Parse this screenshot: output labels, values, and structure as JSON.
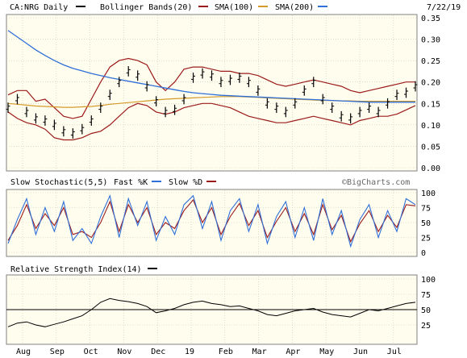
{
  "colors": {
    "background": "#fffdee",
    "price": "#000000",
    "bollinger": "#9b1a1a",
    "sma100": "#9b1a1a",
    "sma200": "#d39a2a",
    "sma200_line": "#2f6fd8",
    "stoch_fast": "#2f6fd8",
    "stoch_slow": "#9b1a1a",
    "rsi": "#000000"
  },
  "header": {
    "ticker": "CA:NRG Daily",
    "bollinger_label": "Bollinger Bands(20)",
    "sma100_label": "SMA(100)",
    "sma200_label": "SMA(200)",
    "date": "7/22/19"
  },
  "stoch_header": {
    "title": "Slow Stochastic(5,5)",
    "fast_label": "Fast %K",
    "slow_label": "Slow %D",
    "watermark": "©BigCharts.com"
  },
  "rsi_header": {
    "title": "Relative Strength Index(14)"
  },
  "chart_data": [
    {
      "type": "line",
      "panel": "price",
      "title": "CA:NRG Daily",
      "x_tick_labels": [
        "Aug",
        "Sep",
        "Oct",
        "Nov",
        "Dec",
        "19",
        "Feb",
        "Mar",
        "Apr",
        "May",
        "Jun",
        "Jul"
      ],
      "y_tick_labels": [
        "0.35",
        "0.30",
        "0.25",
        "0.20",
        "0.15",
        "0.10",
        "0.05",
        "0.00"
      ],
      "ylim": [
        0,
        0.35
      ],
      "grid": true,
      "series": [
        {
          "name": "Bollinger Bands(20)",
          "kind": "band_upper",
          "values": [
            0.17,
            0.18,
            0.18,
            0.155,
            0.16,
            0.14,
            0.12,
            0.115,
            0.12,
            0.16,
            0.2,
            0.235,
            0.25,
            0.255,
            0.25,
            0.24,
            0.2,
            0.18,
            0.2,
            0.23,
            0.235,
            0.235,
            0.23,
            0.225,
            0.225,
            0.22,
            0.22,
            0.215,
            0.205,
            0.195,
            0.19,
            0.195,
            0.2,
            0.205,
            0.2,
            0.195,
            0.19,
            0.18,
            0.175,
            0.18,
            0.185,
            0.19,
            0.195,
            0.2,
            0.2
          ]
        },
        {
          "name": "Bollinger Bands(20)",
          "kind": "band_lower",
          "values": [
            0.13,
            0.115,
            0.105,
            0.1,
            0.09,
            0.07,
            0.065,
            0.065,
            0.07,
            0.08,
            0.085,
            0.1,
            0.12,
            0.14,
            0.15,
            0.145,
            0.13,
            0.125,
            0.13,
            0.14,
            0.145,
            0.15,
            0.15,
            0.145,
            0.14,
            0.13,
            0.12,
            0.115,
            0.11,
            0.105,
            0.105,
            0.11,
            0.115,
            0.12,
            0.115,
            0.11,
            0.105,
            0.1,
            0.11,
            0.115,
            0.12,
            0.12,
            0.125,
            0.135,
            0.145
          ]
        },
        {
          "name": "SMA(100)",
          "values": [
            0.15,
            0.148,
            0.146,
            0.144,
            0.143,
            0.142,
            0.141,
            0.141,
            0.142,
            0.143,
            0.145,
            0.148,
            0.15,
            0.152,
            0.154,
            0.156,
            0.158,
            0.16,
            0.161,
            0.162,
            0.163,
            0.164,
            0.165,
            0.166,
            0.166,
            0.166,
            0.165,
            0.164,
            0.163,
            0.162,
            0.161,
            0.16,
            0.159,
            0.158,
            0.157,
            0.157,
            0.156,
            0.156,
            0.155,
            0.155,
            0.155,
            0.155,
            0.155,
            0.155,
            0.155
          ]
        },
        {
          "name": "SMA(200)",
          "values": [
            0.32,
            0.305,
            0.29,
            0.275,
            0.262,
            0.25,
            0.24,
            0.232,
            0.226,
            0.22,
            0.215,
            0.21,
            0.206,
            0.202,
            0.198,
            0.194,
            0.19,
            0.186,
            0.182,
            0.178,
            0.175,
            0.173,
            0.171,
            0.169,
            0.168,
            0.167,
            0.166,
            0.165,
            0.164,
            0.163,
            0.162,
            0.161,
            0.16,
            0.159,
            0.158,
            0.157,
            0.156,
            0.155,
            0.154,
            0.153,
            0.153,
            0.153,
            0.153,
            0.153,
            0.153
          ]
        },
        {
          "name": "Price",
          "values": [
            0.14,
            0.16,
            0.13,
            0.115,
            0.11,
            0.1,
            0.085,
            0.08,
            0.09,
            0.11,
            0.14,
            0.17,
            0.2,
            0.225,
            0.215,
            0.19,
            0.155,
            0.13,
            0.135,
            0.16,
            0.21,
            0.22,
            0.215,
            0.2,
            0.205,
            0.21,
            0.2,
            0.18,
            0.15,
            0.14,
            0.13,
            0.15,
            0.18,
            0.2,
            0.16,
            0.14,
            0.12,
            0.115,
            0.13,
            0.14,
            0.13,
            0.15,
            0.17,
            0.175,
            0.19
          ]
        }
      ]
    },
    {
      "type": "line",
      "panel": "stochastic",
      "title": "Slow Stochastic(5,5)",
      "y_tick_labels": [
        "100",
        "75",
        "50",
        "25",
        "0"
      ],
      "ylim": [
        0,
        100
      ],
      "series": [
        {
          "name": "Fast %K",
          "values": [
            15,
            55,
            90,
            30,
            75,
            35,
            85,
            20,
            40,
            15,
            60,
            95,
            25,
            90,
            45,
            85,
            20,
            60,
            30,
            80,
            95,
            40,
            85,
            20,
            70,
            90,
            35,
            80,
            15,
            60,
            85,
            25,
            75,
            20,
            90,
            30,
            70,
            10,
            55,
            80,
            25,
            70,
            35,
            90,
            80
          ]
        },
        {
          "name": "Slow %D",
          "values": [
            20,
            45,
            80,
            40,
            65,
            45,
            75,
            30,
            35,
            25,
            50,
            85,
            35,
            80,
            50,
            75,
            30,
            50,
            40,
            70,
            88,
            50,
            75,
            30,
            60,
            82,
            45,
            70,
            25,
            52,
            75,
            35,
            65,
            30,
            80,
            38,
            62,
            18,
            48,
            70,
            35,
            62,
            42,
            80,
            78
          ]
        }
      ]
    },
    {
      "type": "line",
      "panel": "rsi",
      "title": "Relative Strength Index(14)",
      "y_tick_labels": [
        "100",
        "75",
        "50",
        "25"
      ],
      "ylim": [
        0,
        100
      ],
      "series": [
        {
          "name": "Relative Strength Index(14)",
          "values": [
            22,
            28,
            30,
            25,
            22,
            26,
            30,
            35,
            40,
            50,
            62,
            68,
            65,
            63,
            60,
            55,
            45,
            48,
            52,
            58,
            62,
            64,
            60,
            58,
            55,
            56,
            52,
            48,
            42,
            40,
            44,
            48,
            50,
            52,
            46,
            42,
            40,
            38,
            44,
            50,
            48,
            52,
            56,
            60,
            62
          ]
        }
      ]
    }
  ]
}
